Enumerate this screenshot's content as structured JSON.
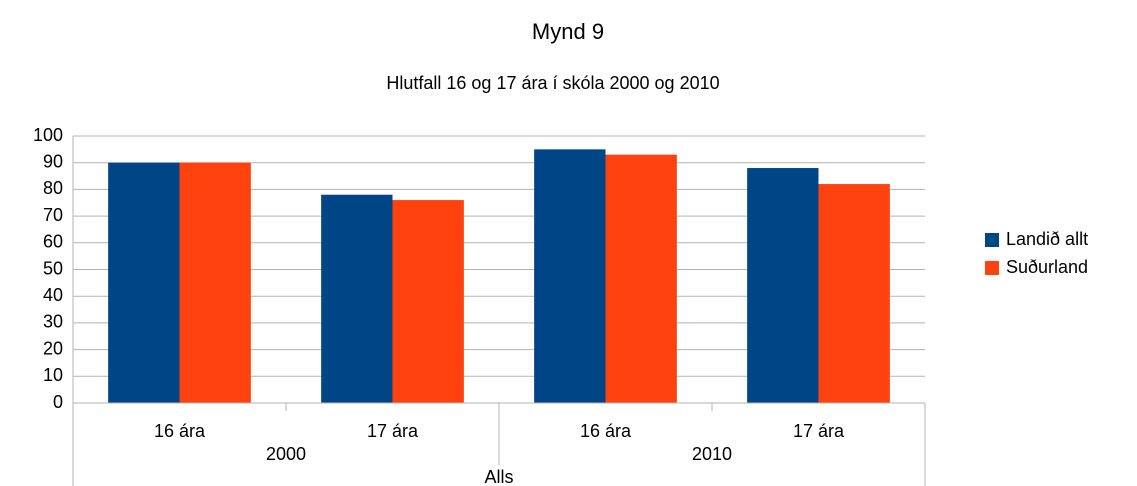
{
  "chart_data": {
    "type": "bar",
    "title": "Mynd 9",
    "subtitle": "Hlutfall 16 og 17 ára í skóla 2000 og 2010",
    "x_label": "Alls",
    "categories": [
      "16 ára",
      "17 ára",
      "16 ára",
      "17 ára"
    ],
    "groups": [
      "2000",
      "2010"
    ],
    "series": [
      {
        "name": "Landið allt",
        "color": "#004586",
        "values": [
          90,
          78,
          95,
          88
        ]
      },
      {
        "name": "Suðurland",
        "color": "#ff420e",
        "values": [
          90,
          76,
          93,
          82
        ]
      }
    ],
    "ylim": [
      0,
      100
    ],
    "yticks": [
      0,
      10,
      20,
      30,
      40,
      50,
      60,
      70,
      80,
      90,
      100
    ],
    "grid": true,
    "legend": "right"
  }
}
